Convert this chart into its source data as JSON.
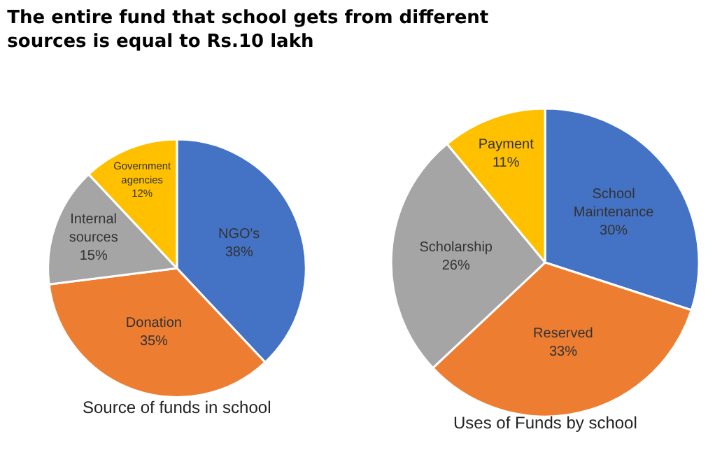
{
  "chart_data": [
    {
      "type": "pie",
      "title": "The entire fund that school gets from different sources is equal to Rs.10 lakh",
      "categories": [
        "NGO's",
        "Donation",
        "Internal sources",
        "Government agencies"
      ],
      "values": [
        38,
        35,
        15,
        12
      ],
      "value_labels": [
        "38%",
        "35%",
        "15%",
        "12%"
      ],
      "colors": [
        "#4472c4",
        "#ed7d31",
        "#a5a5a5",
        "#ffc000"
      ],
      "annotations": [
        "Source of funds in school"
      ]
    },
    {
      "type": "pie",
      "categories": [
        "School Maintenance",
        "Reserved",
        "Scholarship",
        "Payment"
      ],
      "values": [
        30,
        33,
        26,
        11
      ],
      "value_labels": [
        "30%",
        "33%",
        "26%",
        "11%"
      ],
      "colors": [
        "#4472c4",
        "#ed7d31",
        "#a5a5a5",
        "#ffc000"
      ],
      "annotations": [
        "Uses of Funds by school"
      ]
    }
  ]
}
